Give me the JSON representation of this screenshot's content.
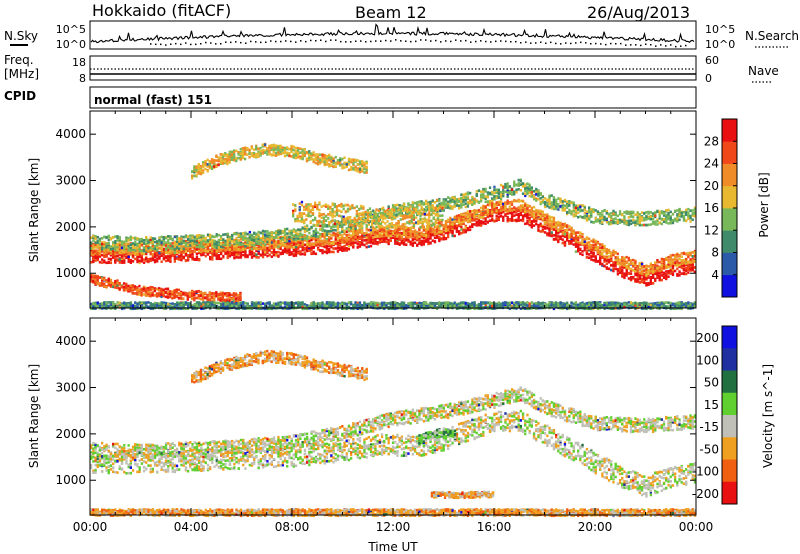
{
  "header": {
    "station": "Hokkaido (fitACF)",
    "beam": "Beam 12",
    "date": "26/Aug/2013"
  },
  "noise_panel": {
    "left_label": "N.Sky",
    "right_label": "N.Search",
    "left_ticks": [
      "10^5",
      "10^0"
    ],
    "right_ticks": [
      "10^5",
      "10^0"
    ]
  },
  "freq_panel": {
    "left_label_1": "Freq.",
    "left_label_2": "[MHz]",
    "left_ticks": [
      "18",
      "8"
    ],
    "right_ticks": [
      "60",
      "0"
    ],
    "right_label": "Nave"
  },
  "cpid": {
    "label": "CPID",
    "value": "normal (fast) 151"
  },
  "colors": {
    "power_scale": [
      "#1010e0",
      "#2a5aa8",
      "#3e8a6a",
      "#78b85a",
      "#e8b830",
      "#f08c28",
      "#f04818",
      "#e81010"
    ],
    "velocity_scale": [
      "#1010e0",
      "#2030a0",
      "#207040",
      "#60d030",
      "#c0c0b8",
      "#f0a020",
      "#f06010",
      "#e81010"
    ]
  },
  "chart_data": [
    {
      "type": "heatmap",
      "quantity": "power",
      "ylabel": "Slant Range [km]",
      "yticks": [
        1000,
        2000,
        3000,
        4000
      ],
      "ylim": [
        250,
        4500
      ],
      "xlim": [
        0,
        24
      ],
      "colorbar_label": "Power [dB]",
      "colorbar_ticks": [
        4,
        8,
        12,
        16,
        20,
        24,
        28
      ],
      "bands": [
        {
          "x": [
            0,
            2,
            4,
            6,
            8,
            10,
            11.5,
            13,
            14,
            15,
            16,
            17,
            18,
            19,
            20,
            21,
            22,
            23,
            24
          ],
          "y": [
            1400,
            1400,
            1450,
            1500,
            1550,
            1650,
            1800,
            1750,
            1900,
            2100,
            2300,
            2300,
            2000,
            1700,
            1400,
            1100,
            900,
            1100,
            1200
          ],
          "w": 300,
          "level": 7
        },
        {
          "x": [
            0,
            2,
            4,
            6,
            8,
            10,
            11.5,
            13,
            14,
            15,
            16,
            17,
            18,
            19,
            20,
            21,
            22,
            23,
            24
          ],
          "y": [
            1550,
            1550,
            1600,
            1650,
            1700,
            1800,
            1950,
            1900,
            2050,
            2250,
            2450,
            2500,
            2200,
            1900,
            1600,
            1300,
            1100,
            1300,
            1400
          ],
          "w": 250,
          "level": 5
        },
        {
          "x": [
            0,
            2,
            4,
            6,
            8,
            10,
            12,
            14,
            16,
            17,
            18,
            20,
            22,
            24
          ],
          "y": [
            1700,
            1650,
            1700,
            1750,
            1850,
            2050,
            2350,
            2500,
            2750,
            2900,
            2600,
            2250,
            2200,
            2300
          ],
          "w": 300,
          "level": 3
        },
        {
          "x": [
            0,
            2,
            4,
            6
          ],
          "y": [
            900,
            650,
            550,
            500
          ],
          "w": 200,
          "level": 6
        },
        {
          "x": [
            8,
            10,
            12,
            14
          ],
          "y": [
            2350,
            2300,
            2200,
            2250
          ],
          "w": 450,
          "level": 4
        },
        {
          "x": [
            4,
            5,
            6,
            7,
            8,
            9,
            10,
            11
          ],
          "y": [
            3200,
            3450,
            3600,
            3700,
            3650,
            3500,
            3400,
            3300
          ],
          "w": 250,
          "level": 4
        },
        {
          "x": [
            0,
            6,
            12,
            18,
            24
          ],
          "y": [
            330,
            330,
            330,
            330,
            330
          ],
          "w": 140,
          "level": 2
        }
      ]
    },
    {
      "type": "heatmap",
      "quantity": "velocity",
      "ylabel": "Slant Range [km]",
      "yticks": [
        1000,
        2000,
        3000,
        4000
      ],
      "ylim": [
        250,
        4500
      ],
      "xlim": [
        0,
        24
      ],
      "xlabel": "Time UT",
      "xticks": [
        "00:00",
        "04:00",
        "08:00",
        "12:00",
        "16:00",
        "20:00",
        "00:00"
      ],
      "colorbar_label": "Velocity [m s^-1]",
      "colorbar_ticks": [
        200,
        100,
        50,
        15,
        -15,
        -50,
        -100,
        -200
      ],
      "bands": [
        {
          "x": [
            0,
            2,
            4,
            6,
            8,
            10,
            11.5,
            13,
            14,
            15,
            16,
            17,
            18,
            19,
            20,
            21,
            22,
            23,
            24
          ],
          "y": [
            1400,
            1400,
            1450,
            1500,
            1550,
            1650,
            1800,
            1750,
            1900,
            2100,
            2300,
            2300,
            2000,
            1700,
            1400,
            1100,
            900,
            1100,
            1200
          ],
          "w": 450,
          "level": 4
        },
        {
          "x": [
            0,
            2,
            4,
            6,
            8,
            10,
            12,
            14,
            16,
            17,
            18,
            20,
            22,
            24
          ],
          "y": [
            1700,
            1650,
            1700,
            1750,
            1850,
            2050,
            2350,
            2500,
            2750,
            2900,
            2600,
            2250,
            2200,
            2300
          ],
          "w": 300,
          "level": 4
        },
        {
          "x": [
            4,
            5,
            6,
            7,
            8,
            9,
            10,
            11
          ],
          "y": [
            3200,
            3450,
            3600,
            3700,
            3650,
            3500,
            3400,
            3300
          ],
          "w": 250,
          "level": 5
        },
        {
          "x": [
            13,
            13.5,
            14,
            14.5
          ],
          "y": [
            1900,
            2000,
            2050,
            2000
          ],
          "w": 200,
          "level": 3
        },
        {
          "x": [
            13.5,
            14.5,
            15.5,
            16
          ],
          "y": [
            720,
            700,
            720,
            720
          ],
          "w": 120,
          "level": 5
        },
        {
          "x": [
            0,
            6,
            12,
            18,
            24
          ],
          "y": [
            330,
            330,
            330,
            330,
            330
          ],
          "w": 140,
          "level": 5
        }
      ]
    }
  ]
}
